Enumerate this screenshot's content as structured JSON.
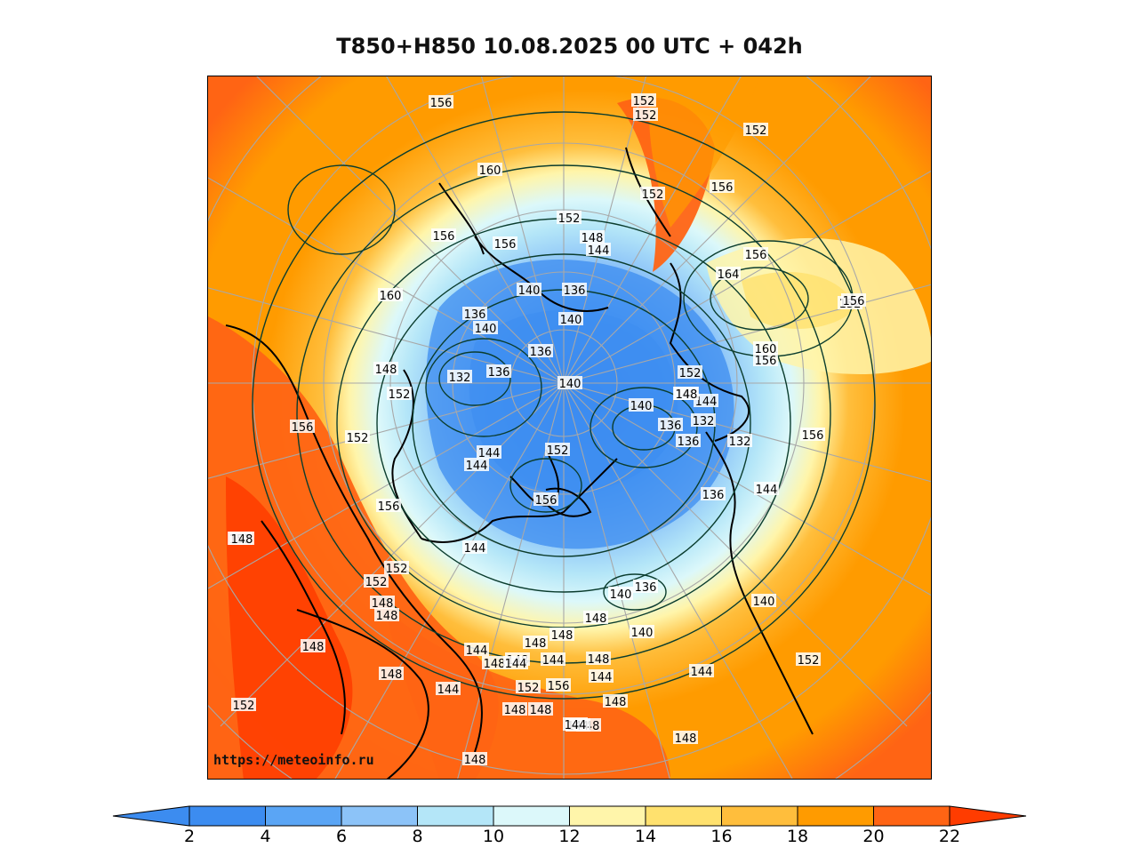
{
  "title": "T850+H850 10.08.2025 00 UTC + 042h",
  "watermark": "https://meteoinfo.ru",
  "colorbar": {
    "ticks": [
      "2",
      "4",
      "6",
      "8",
      "10",
      "12",
      "14",
      "16",
      "18",
      "20",
      "22"
    ],
    "colors": [
      "#3c8cf0",
      "#5aa5f5",
      "#8cc3f8",
      "#b4e6f8",
      "#dcf8fa",
      "#fff5aa",
      "#ffe16e",
      "#ffbe3c",
      "#ff9b00",
      "#ff6414",
      "#ff3c00"
    ],
    "low_color": "#3c8cf0",
    "high_color": "#ff3c00"
  },
  "contour_labels": [
    "156",
    "152",
    "152",
    "152",
    "160",
    "152",
    "156",
    "156",
    "156",
    "152",
    "148",
    "144",
    "164",
    "156",
    "140",
    "136",
    "152",
    "160",
    "160",
    "136",
    "140",
    "140",
    "156",
    "148",
    "136",
    "152",
    "132",
    "136",
    "140",
    "152",
    "148",
    "144",
    "140",
    "136",
    "132",
    "132",
    "136",
    "156",
    "152",
    "156",
    "156",
    "148",
    "144",
    "152",
    "144",
    "156",
    "144",
    "136",
    "144",
    "140",
    "156",
    "152",
    "152",
    "148",
    "152",
    "148",
    "148",
    "140",
    "136",
    "148",
    "144",
    "140",
    "148",
    "148",
    "148",
    "148",
    "148",
    "148",
    "148",
    "144",
    "144",
    "144",
    "152",
    "156",
    "144",
    "148",
    "148",
    "144",
    "144",
    "148",
    "152",
    "148",
    "148",
    "148",
    "144",
    "152"
  ]
}
